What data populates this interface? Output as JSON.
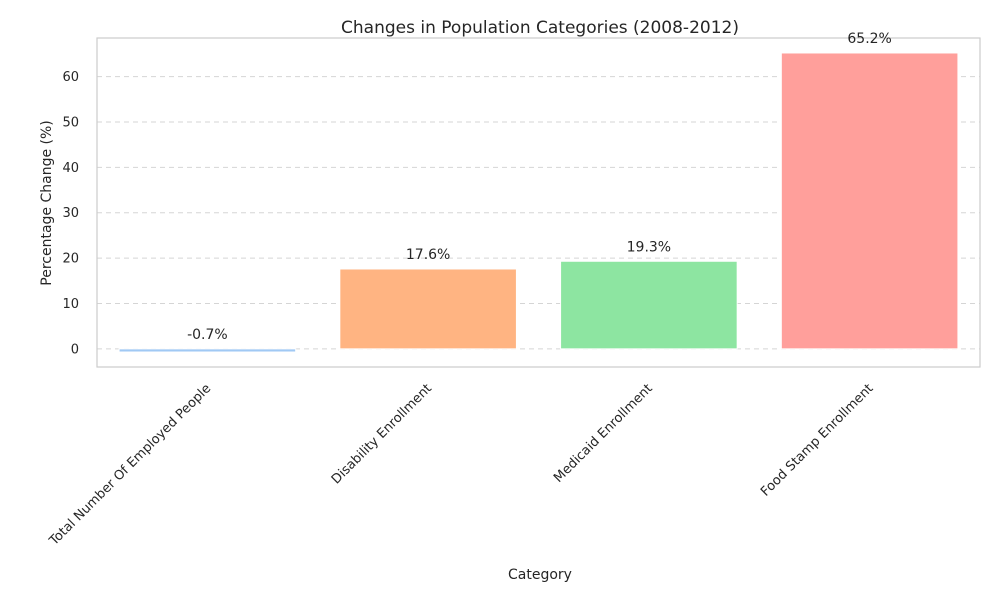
{
  "chart_data": {
    "type": "bar",
    "title": "Changes in Population Categories (2008-2012)",
    "xlabel": "Category",
    "ylabel": "Percentage Change (%)",
    "categories": [
      "Total Number Of Employed People",
      "Disability Enrollment",
      "Medicaid Enrollment",
      "Food Stamp Enrollment"
    ],
    "values": [
      -0.7,
      17.6,
      19.3,
      65.2
    ],
    "value_labels": [
      "-0.7%",
      "17.6%",
      "19.3%",
      "65.2%"
    ],
    "colors": [
      "#a1c9f4",
      "#ffb482",
      "#8de5a1",
      "#ff9f9b"
    ],
    "yticks": [
      0,
      10,
      20,
      30,
      40,
      50,
      60
    ],
    "ytick_labels": [
      "0",
      "10",
      "20",
      "30",
      "40",
      "50",
      "60"
    ],
    "ylim": [
      -4,
      68.5
    ],
    "grid": true,
    "grid_axis": "y",
    "legend": "none"
  }
}
